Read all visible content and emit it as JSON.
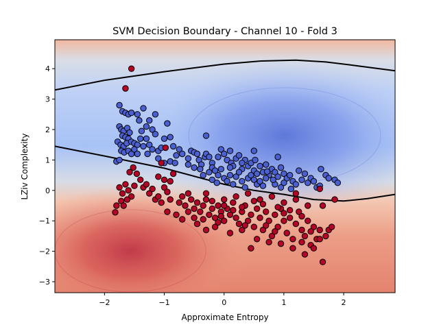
{
  "chart_data": {
    "type": "scatter",
    "title": "SVM Decision Boundary - Channel 10 - Fold 3",
    "xlabel": "Approximate Entropy",
    "ylabel": "LZiv Complexity",
    "xlim": [
      -2.83,
      2.86
    ],
    "ylim": [
      -3.36,
      4.95
    ],
    "xticks": [
      -2,
      -1,
      0,
      1,
      2
    ],
    "yticks": [
      -3,
      -2,
      -1,
      0,
      1,
      2,
      3,
      4
    ],
    "xtick_labels": [
      "−2",
      "−1",
      "0",
      "1",
      "2"
    ],
    "ytick_labels": [
      "−3",
      "−2",
      "−1",
      "0",
      "1",
      "2",
      "3",
      "4"
    ],
    "grid": false,
    "legend": "none",
    "background": "filled contour of SVM decision function (coolwarm colormap)",
    "colors": {
      "class_positive": "#4a5fd0",
      "class_negative": "#b40426",
      "boundary": "#000000",
      "neutral": "#dddddd"
    },
    "decision_boundary": {
      "upper": {
        "x": [
          -2.83,
          -2.0,
          -1.0,
          0.0,
          0.6,
          1.2,
          1.7,
          2.2,
          2.86
        ],
        "y": [
          3.3,
          3.62,
          3.9,
          4.15,
          4.25,
          4.28,
          4.22,
          4.1,
          3.93
        ]
      },
      "lower": {
        "x": [
          -2.83,
          -2.0,
          -1.0,
          0.0,
          0.5,
          1.0,
          1.5,
          2.0,
          2.4,
          2.86
        ],
        "y": [
          1.45,
          1.13,
          0.73,
          0.2,
          0.0,
          -0.13,
          -0.3,
          -0.35,
          -0.27,
          -0.13
        ]
      }
    },
    "series": [
      {
        "class": "positive",
        "color": "#4a5fd0",
        "points": [
          [
            -1.75,
            2.8
          ],
          [
            -1.7,
            2.6
          ],
          [
            -1.65,
            2.55
          ],
          [
            -1.6,
            2.5
          ],
          [
            -1.55,
            2.55
          ],
          [
            -1.45,
            2.5
          ],
          [
            -1.75,
            2.1
          ],
          [
            -1.72,
            2.0
          ],
          [
            -1.68,
            1.95
          ],
          [
            -1.62,
            2.05
          ],
          [
            -1.58,
            1.9
          ],
          [
            -1.7,
            1.8
          ],
          [
            -1.65,
            1.75
          ],
          [
            -1.6,
            1.7
          ],
          [
            -1.78,
            1.6
          ],
          [
            -1.73,
            1.5
          ],
          [
            -1.68,
            1.45
          ],
          [
            -1.63,
            1.55
          ],
          [
            -1.55,
            1.6
          ],
          [
            -1.5,
            1.55
          ],
          [
            -1.45,
            1.5
          ],
          [
            -1.72,
            1.3
          ],
          [
            -1.67,
            1.25
          ],
          [
            -1.6,
            1.3
          ],
          [
            -1.55,
            1.2
          ],
          [
            -1.5,
            1.35
          ],
          [
            -1.45,
            1.2
          ],
          [
            -1.38,
            1.95
          ],
          [
            -1.3,
            2.1
          ],
          [
            -1.25,
            2.3
          ],
          [
            -1.2,
            2.0
          ],
          [
            -1.15,
            1.85
          ],
          [
            -1.3,
            1.7
          ],
          [
            -1.25,
            1.5
          ],
          [
            -1.2,
            1.35
          ],
          [
            -1.1,
            1.3
          ],
          [
            -1.05,
            1.4
          ],
          [
            -1.0,
            1.7
          ],
          [
            -0.95,
            2.2
          ],
          [
            -1.15,
            2.5
          ],
          [
            -1.42,
            2.3
          ],
          [
            -1.35,
            2.7
          ],
          [
            -1.4,
            1.7
          ],
          [
            -1.35,
            1.45
          ],
          [
            -1.28,
            1.2
          ],
          [
            -0.9,
            1.75
          ],
          [
            -0.85,
            1.45
          ],
          [
            -0.8,
            1.15
          ],
          [
            -0.75,
            1.35
          ],
          [
            -0.7,
            1.2
          ],
          [
            -0.9,
            0.95
          ],
          [
            -0.82,
            0.9
          ],
          [
            -1.8,
            0.95
          ],
          [
            -1.75,
            1.0
          ],
          [
            -1.1,
            1.05
          ],
          [
            -1.0,
            0.9
          ],
          [
            -0.6,
            1.05
          ],
          [
            -0.55,
            1.3
          ],
          [
            -0.5,
            1.25
          ],
          [
            -0.45,
            1.2
          ],
          [
            -0.42,
            1.0
          ],
          [
            -0.38,
            0.85
          ],
          [
            -0.32,
            1.1
          ],
          [
            -0.3,
            1.2
          ],
          [
            -0.25,
            1.1
          ],
          [
            -0.2,
            0.9
          ],
          [
            -0.6,
            0.85
          ],
          [
            -0.5,
            0.75
          ],
          [
            -0.4,
            0.7
          ],
          [
            -0.35,
            0.5
          ],
          [
            -0.25,
            0.6
          ],
          [
            -0.3,
            1.8
          ],
          [
            -0.2,
            0.75
          ],
          [
            -0.15,
            0.65
          ],
          [
            -0.1,
            1.1
          ],
          [
            -0.05,
            1.35
          ],
          [
            0.0,
            1.2
          ],
          [
            0.05,
            1.0
          ],
          [
            0.1,
            1.3
          ],
          [
            0.12,
            0.9
          ],
          [
            0.15,
            0.8
          ],
          [
            0.2,
            1.05
          ],
          [
            0.25,
            1.15
          ],
          [
            0.3,
            0.7
          ],
          [
            0.35,
            1.0
          ],
          [
            0.4,
            0.8
          ],
          [
            0.45,
            0.9
          ],
          [
            0.5,
            0.65
          ],
          [
            0.55,
            0.55
          ],
          [
            0.6,
            0.8
          ],
          [
            0.65,
            0.6
          ],
          [
            0.7,
            0.85
          ],
          [
            0.75,
            0.5
          ],
          [
            0.8,
            0.7
          ],
          [
            0.85,
            0.6
          ],
          [
            0.9,
            0.45
          ],
          [
            0.95,
            0.75
          ],
          [
            1.0,
            0.55
          ],
          [
            1.05,
            0.4
          ],
          [
            1.1,
            0.5
          ],
          [
            1.15,
            0.3
          ],
          [
            1.2,
            0.2
          ],
          [
            1.25,
            0.65
          ],
          [
            1.3,
            0.35
          ],
          [
            1.35,
            0.55
          ],
          [
            1.4,
            0.25
          ],
          [
            1.45,
            0.4
          ],
          [
            1.5,
            0.3
          ],
          [
            1.55,
            0.1
          ],
          [
            1.6,
            0.15
          ],
          [
            1.62,
            0.7
          ],
          [
            1.7,
            0.5
          ],
          [
            1.75,
            0.4
          ],
          [
            1.85,
            0.35
          ],
          [
            1.9,
            0.25
          ],
          [
            -0.1,
            0.5
          ],
          [
            -0.05,
            0.7
          ],
          [
            0.0,
            0.4
          ],
          [
            0.05,
            0.3
          ],
          [
            0.1,
            0.5
          ],
          [
            0.15,
            0.2
          ],
          [
            0.2,
            0.45
          ],
          [
            0.3,
            0.3
          ],
          [
            0.35,
            0.1
          ],
          [
            0.4,
            0.4
          ],
          [
            0.45,
            0.5
          ],
          [
            0.5,
            0.35
          ],
          [
            0.55,
            0.2
          ],
          [
            0.6,
            0.3
          ],
          [
            0.65,
            0.15
          ],
          [
            0.7,
            0.4
          ],
          [
            0.85,
            0.2
          ],
          [
            0.95,
            0.1
          ],
          [
            1.0,
            0.25
          ],
          [
            1.12,
            0.05
          ],
          [
            -0.2,
            0.35
          ],
          [
            -0.12,
            0.25
          ],
          [
            0.25,
            0.6
          ],
          [
            0.3,
            0.9
          ],
          [
            0.1,
            0.75
          ],
          [
            0.5,
            1.3
          ],
          [
            0.9,
            1.1
          ],
          [
            0.52,
            1.0
          ],
          [
            0.82,
            0.35
          ],
          [
            0.72,
            0.62
          ]
        ]
      },
      {
        "class": "negative",
        "color": "#b40426",
        "points": [
          [
            -1.55,
            4.0
          ],
          [
            -1.65,
            3.35
          ],
          [
            -0.98,
            1.4
          ],
          [
            -1.75,
            0.1
          ],
          [
            -1.7,
            -0.1
          ],
          [
            -1.65,
            0.2
          ],
          [
            -1.6,
            0.0
          ],
          [
            -1.55,
            -0.2
          ],
          [
            -1.5,
            0.15
          ],
          [
            -1.72,
            -0.35
          ],
          [
            -1.68,
            -0.5
          ],
          [
            -1.62,
            -0.3
          ],
          [
            -1.8,
            -0.5
          ],
          [
            -1.82,
            -0.72
          ],
          [
            -1.58,
            0.6
          ],
          [
            -1.52,
            0.75
          ],
          [
            -1.46,
            0.55
          ],
          [
            -1.4,
            0.35
          ],
          [
            -1.35,
            0.1
          ],
          [
            -1.3,
            0.2
          ],
          [
            -1.25,
            -0.1
          ],
          [
            -1.2,
            0.05
          ],
          [
            -1.15,
            -0.3
          ],
          [
            -1.1,
            -0.2
          ],
          [
            -1.05,
            -0.4
          ],
          [
            -1.0,
            0.1
          ],
          [
            -0.95,
            -0.05
          ],
          [
            -0.9,
            -0.3
          ],
          [
            -1.1,
            0.45
          ],
          [
            -1.0,
            0.35
          ],
          [
            -0.9,
            0.3
          ],
          [
            -0.85,
            0.55
          ],
          [
            -1.05,
            0.9
          ],
          [
            -0.75,
            -0.4
          ],
          [
            -0.7,
            -0.2
          ],
          [
            -0.65,
            -0.5
          ],
          [
            -0.6,
            -0.1
          ],
          [
            -0.55,
            -0.3
          ],
          [
            -0.5,
            -0.6
          ],
          [
            -0.45,
            -0.4
          ],
          [
            -0.4,
            -0.7
          ],
          [
            -0.35,
            -0.5
          ],
          [
            -0.3,
            -0.3
          ],
          [
            -0.25,
            -0.8
          ],
          [
            -0.2,
            -0.6
          ],
          [
            -0.15,
            -0.9
          ],
          [
            -0.1,
            -0.5
          ],
          [
            -0.05,
            -0.7
          ],
          [
            0.0,
            -1.0
          ],
          [
            0.05,
            -0.6
          ],
          [
            0.1,
            -0.8
          ],
          [
            0.15,
            -0.4
          ],
          [
            0.2,
            -0.9
          ],
          [
            0.25,
            -1.1
          ],
          [
            0.3,
            -0.7
          ],
          [
            0.35,
            -0.5
          ],
          [
            0.4,
            -1.0
          ],
          [
            0.45,
            -0.8
          ],
          [
            0.5,
            -1.2
          ],
          [
            0.55,
            -0.6
          ],
          [
            0.6,
            -0.9
          ],
          [
            0.65,
            -1.3
          ],
          [
            0.7,
            -0.7
          ],
          [
            0.75,
            -1.0
          ],
          [
            0.8,
            -1.5
          ],
          [
            0.85,
            -0.8
          ],
          [
            0.9,
            -1.2
          ],
          [
            0.95,
            -0.6
          ],
          [
            1.0,
            -1.0
          ],
          [
            1.05,
            -1.4
          ],
          [
            1.1,
            -0.9
          ],
          [
            1.15,
            -1.6
          ],
          [
            1.2,
            -1.1
          ],
          [
            1.25,
            -0.7
          ],
          [
            1.3,
            -1.3
          ],
          [
            1.35,
            -1.5
          ],
          [
            1.4,
            -1.0
          ],
          [
            1.45,
            -1.8
          ],
          [
            1.5,
            -1.2
          ],
          [
            1.55,
            -1.6
          ],
          [
            1.6,
            -1.3
          ],
          [
            1.65,
            -0.5
          ],
          [
            1.7,
            -1.5
          ],
          [
            1.75,
            -1.3
          ],
          [
            1.8,
            -1.2
          ],
          [
            1.85,
            -0.3
          ],
          [
            1.35,
            -2.1
          ],
          [
            1.65,
            -2.35
          ],
          [
            0.45,
            -1.9
          ],
          [
            -0.3,
            -1.3
          ],
          [
            -0.5,
            -0.9
          ],
          [
            -0.6,
            -0.7
          ],
          [
            -0.8,
            -0.8
          ],
          [
            -0.95,
            -0.7
          ],
          [
            -0.3,
            -0.1
          ],
          [
            0.0,
            -0.3
          ],
          [
            0.2,
            -0.2
          ],
          [
            0.4,
            -0.1
          ],
          [
            0.6,
            -0.3
          ],
          [
            0.8,
            -0.2
          ],
          [
            1.0,
            -0.4
          ],
          [
            1.2,
            -0.3
          ],
          [
            1.4,
            -0.5
          ],
          [
            1.6,
            0.05
          ],
          [
            -0.15,
            -1.2
          ],
          [
            0.1,
            -1.4
          ],
          [
            0.3,
            -1.3
          ],
          [
            0.55,
            -1.6
          ],
          [
            0.75,
            -1.7
          ],
          [
            0.95,
            -1.75
          ],
          [
            1.15,
            -1.9
          ],
          [
            1.3,
            -1.7
          ],
          [
            1.5,
            -1.9
          ],
          [
            -0.7,
            -0.95
          ],
          [
            -0.45,
            -1.1
          ],
          [
            0.65,
            -0.45
          ],
          [
            0.9,
            -0.55
          ],
          [
            1.1,
            -0.65
          ],
          [
            1.2,
            -0.1
          ],
          [
            0.0,
            -0.5
          ],
          [
            -0.2,
            -0.35
          ],
          [
            0.3,
            -0.55
          ],
          [
            0.15,
            -0.65
          ],
          [
            -0.05,
            -0.85
          ],
          [
            0.5,
            -0.35
          ],
          [
            0.7,
            -1.15
          ],
          [
            1.3,
            -0.85
          ],
          [
            1.45,
            -1.35
          ],
          [
            1.6,
            -1.6
          ],
          [
            1.0,
            -0.75
          ],
          [
            0.85,
            -1.35
          ],
          [
            0.35,
            -1.15
          ],
          [
            -0.1,
            -1.05
          ],
          [
            -0.35,
            -0.95
          ]
        ]
      }
    ]
  }
}
